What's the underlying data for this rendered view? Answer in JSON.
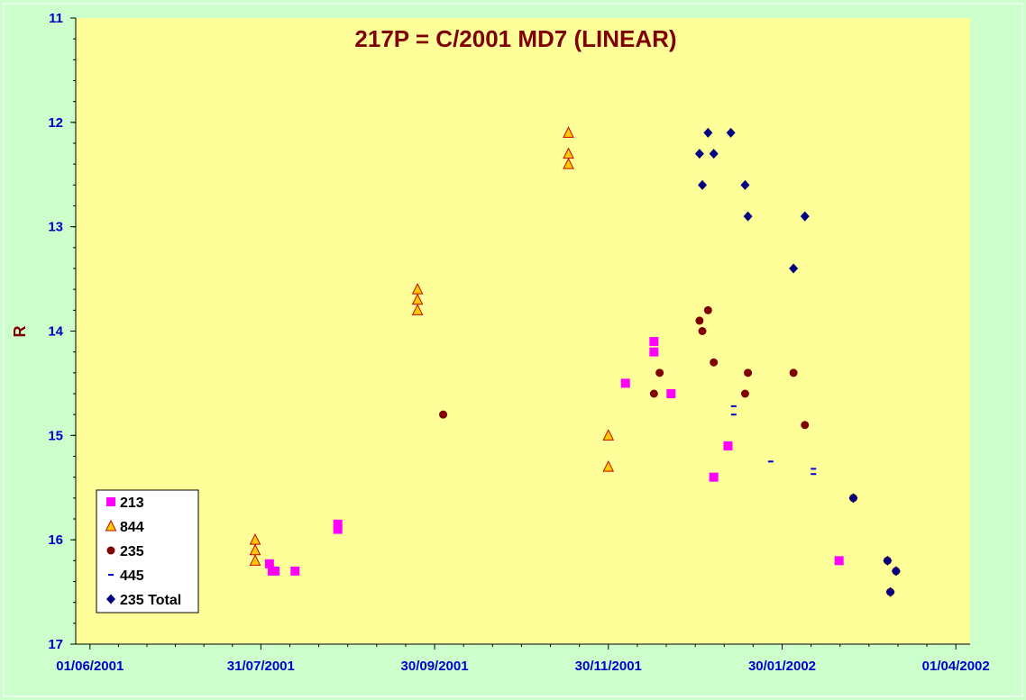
{
  "chart_data": {
    "type": "scatter",
    "title": "217P = C/2001 MD7 (LINEAR)",
    "xlabel": "",
    "ylabel": "R",
    "xaxis_type": "date",
    "xlim": [
      "2001-05-27",
      "2002-04-06"
    ],
    "ylim": [
      17,
      11
    ],
    "y_inverted": true,
    "x_ticks": [
      "01/06/2001",
      "31/07/2001",
      "30/09/2001",
      "30/11/2001",
      "30/01/2002",
      "01/04/2002"
    ],
    "y_ticks": [
      11,
      12,
      13,
      14,
      15,
      16,
      17
    ],
    "grid": false,
    "legend_position": "bottom-left",
    "colors": {
      "page_background": "#ccffcc",
      "plot_background": "#ffff99",
      "title": "#800000",
      "axis_label": "#800000",
      "tick_labels": "#0000cc"
    },
    "series": [
      {
        "name": "213",
        "marker": "square",
        "color": "#ff00ff",
        "points": [
          {
            "x": "2001-08-03",
            "y": 16.23
          },
          {
            "x": "2001-08-04",
            "y": 16.3
          },
          {
            "x": "2001-08-05",
            "y": 16.3
          },
          {
            "x": "2001-08-12",
            "y": 16.3
          },
          {
            "x": "2001-08-27",
            "y": 15.85
          },
          {
            "x": "2001-08-27",
            "y": 15.9
          },
          {
            "x": "2001-12-06",
            "y": 14.5
          },
          {
            "x": "2001-12-16",
            "y": 14.1
          },
          {
            "x": "2001-12-16",
            "y": 14.2
          },
          {
            "x": "2001-12-22",
            "y": 14.6
          },
          {
            "x": "2002-01-11",
            "y": 15.1
          },
          {
            "x": "2002-01-06",
            "y": 15.4
          },
          {
            "x": "2002-02-19",
            "y": 16.2
          }
        ]
      },
      {
        "name": "844",
        "marker": "triangle",
        "color": "#ffcc00",
        "stroke": "#cc0000",
        "points": [
          {
            "x": "2001-07-29",
            "y": 16.0
          },
          {
            "x": "2001-07-29",
            "y": 16.1
          },
          {
            "x": "2001-07-29",
            "y": 16.2
          },
          {
            "x": "2001-09-24",
            "y": 13.6
          },
          {
            "x": "2001-09-24",
            "y": 13.7
          },
          {
            "x": "2001-09-24",
            "y": 13.8
          },
          {
            "x": "2001-11-16",
            "y": 12.1
          },
          {
            "x": "2001-11-16",
            "y": 12.3
          },
          {
            "x": "2001-11-16",
            "y": 12.4
          },
          {
            "x": "2001-11-30",
            "y": 15.0
          },
          {
            "x": "2001-11-30",
            "y": 15.3
          }
        ]
      },
      {
        "name": "235",
        "marker": "circle",
        "color": "#800000",
        "points": [
          {
            "x": "2001-10-03",
            "y": 14.8
          },
          {
            "x": "2001-12-16",
            "y": 14.6
          },
          {
            "x": "2001-12-18",
            "y": 14.4
          },
          {
            "x": "2002-01-01",
            "y": 13.9
          },
          {
            "x": "2002-01-02",
            "y": 14.0
          },
          {
            "x": "2002-01-04",
            "y": 13.8
          },
          {
            "x": "2002-01-06",
            "y": 14.3
          },
          {
            "x": "2002-01-17",
            "y": 14.6
          },
          {
            "x": "2002-01-18",
            "y": 14.4
          },
          {
            "x": "2002-02-03",
            "y": 14.4
          },
          {
            "x": "2002-02-07",
            "y": 14.9
          },
          {
            "x": "2002-02-24",
            "y": 15.6
          },
          {
            "x": "2002-03-08",
            "y": 16.2
          },
          {
            "x": "2002-03-09",
            "y": 16.5
          },
          {
            "x": "2002-03-11",
            "y": 16.3
          }
        ]
      },
      {
        "name": "445",
        "marker": "dash",
        "color": "#0000cc",
        "points": [
          {
            "x": "2002-01-13",
            "y": 14.72
          },
          {
            "x": "2002-01-13",
            "y": 14.8
          },
          {
            "x": "2002-01-26",
            "y": 15.25
          },
          {
            "x": "2002-02-10",
            "y": 15.32
          },
          {
            "x": "2002-02-10",
            "y": 15.37
          }
        ]
      },
      {
        "name": "235 Total",
        "marker": "diamond",
        "color": "#000080",
        "points": [
          {
            "x": "2002-01-01",
            "y": 12.3
          },
          {
            "x": "2002-01-02",
            "y": 12.6
          },
          {
            "x": "2002-01-04",
            "y": 12.1
          },
          {
            "x": "2002-01-06",
            "y": 12.3
          },
          {
            "x": "2002-01-12",
            "y": 12.1
          },
          {
            "x": "2002-01-17",
            "y": 12.6
          },
          {
            "x": "2002-01-18",
            "y": 12.9
          },
          {
            "x": "2002-02-03",
            "y": 13.4
          },
          {
            "x": "2002-02-07",
            "y": 12.9
          },
          {
            "x": "2002-02-24",
            "y": 15.6
          },
          {
            "x": "2002-03-08",
            "y": 16.2
          },
          {
            "x": "2002-03-09",
            "y": 16.5
          },
          {
            "x": "2002-03-11",
            "y": 16.3
          }
        ]
      }
    ]
  }
}
